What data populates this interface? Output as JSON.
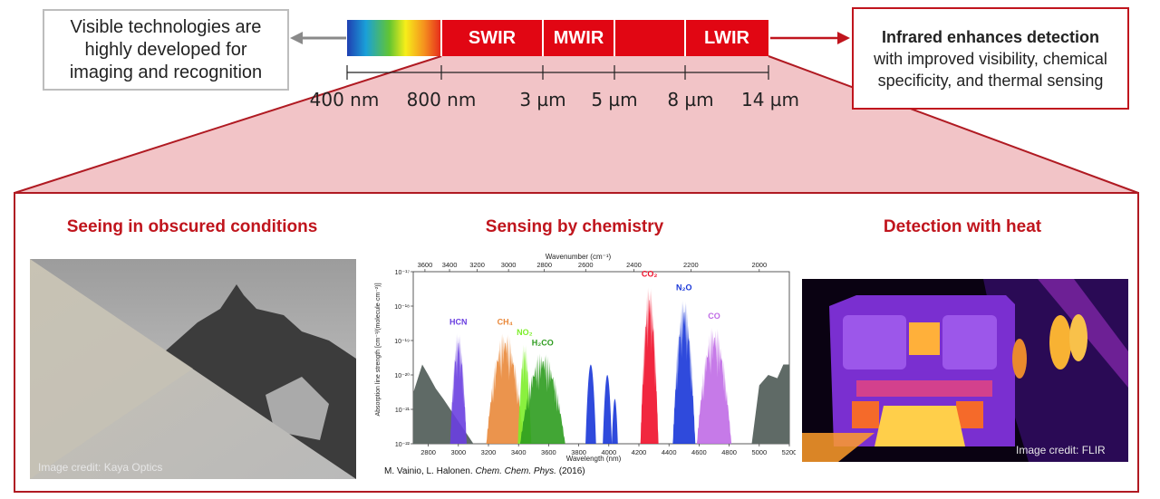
{
  "left_box": {
    "text": "Visible technologies are highly developed for imaging and recognition"
  },
  "right_box": {
    "bold_text": "Infrared enhances detection",
    "text": "with improved visibility, chemical specificity, and thermal sensing"
  },
  "spectrum_bar": {
    "segments": [
      "SWIR",
      "MWIR",
      "LWIR"
    ],
    "ticks": [
      "400 nm",
      "800 nm",
      "3 µm",
      "5 µm",
      "8 µm",
      "14 µm"
    ]
  },
  "colors": {
    "accent": "#c0151d",
    "bar_red": "#e10613",
    "panel_pink": "#f2c4c7"
  },
  "sections": {
    "obscured": {
      "title": "Seeing in obscured conditions",
      "credit": "Image credit: Kaya Optics"
    },
    "chemistry": {
      "title": "Sensing by chemistry",
      "citation_authors": "M. Vainio, L. Halonen.",
      "citation_journal": "Chem. Chem. Phys.",
      "citation_year": "(2016)"
    },
    "heat": {
      "title": "Detection with heat",
      "credit": "Image credit: FLIR"
    }
  },
  "chart_data": {
    "type": "area",
    "xlabel": "Wavelength (nm)",
    "top_xlabel": "Wavenumber (cm⁻¹)",
    "ylabel": "Absorption line strength [cm⁻¹/(molecule·cm⁻²)]",
    "log_scale_y": true,
    "xlim": [
      2700,
      5200
    ],
    "ylim": [
      1e-22,
      1e-17
    ],
    "x_ticks": [
      2800,
      3000,
      3200,
      3400,
      3600,
      3800,
      4000,
      4200,
      4400,
      4600,
      4800,
      5000,
      5200
    ],
    "top_ticks": [
      3600,
      3400,
      3200,
      3000,
      2800,
      2600,
      2400,
      2200,
      2000
    ],
    "y_ticks": [
      "10⁻²²",
      "10⁻²¹",
      "10⁻²⁰",
      "10⁻¹⁹",
      "10⁻¹⁸",
      "10⁻¹⁷"
    ],
    "species": [
      {
        "name": "HCN",
        "color": "#6a3fe0",
        "center": 3000,
        "width": 110,
        "peak": 2e-19
      },
      {
        "name": "CH₄",
        "color": "#e9883a",
        "center": 3310,
        "width": 250,
        "peak": 2e-19
      },
      {
        "name": "NO₂",
        "color": "#7dee2a",
        "center": 3440,
        "width": 90,
        "peak": 1e-19
      },
      {
        "name": "H₂CO",
        "color": "#2e9c1f",
        "center": 3560,
        "width": 300,
        "peak": 5e-20
      },
      {
        "name": "CO₂",
        "color": "#f0102a",
        "center": 4270,
        "width": 120,
        "peak": 5e-18
      },
      {
        "name": "N₂O",
        "color": "#1836d8",
        "center": 4500,
        "width": 150,
        "peak": 2e-18
      },
      {
        "name": "CO",
        "color": "#c06be6",
        "center": 4700,
        "width": 230,
        "peak": 3e-19
      }
    ]
  }
}
